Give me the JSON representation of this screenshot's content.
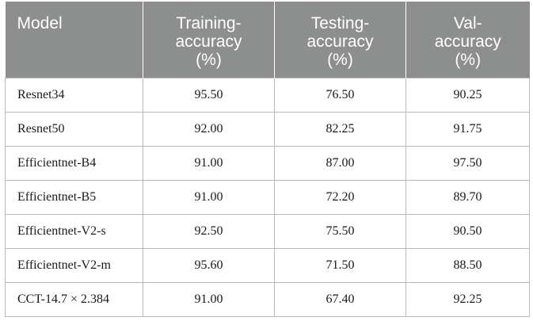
{
  "table": {
    "headers": [
      "Model",
      "Training-\naccuracy\n(%)",
      "Testing-\naccuracy\n(%)",
      "Val-\naccuracy\n(%)"
    ],
    "rows": [
      [
        "Resnet34",
        "95.50",
        "76.50",
        "90.25"
      ],
      [
        "Resnet50",
        "92.00",
        "82.25",
        "91.75"
      ],
      [
        "Efficientnet-B4",
        "91.00",
        "87.00",
        "97.50"
      ],
      [
        "Efficientnet-B5",
        "91.00",
        "72.20",
        "89.70"
      ],
      [
        "Efficientnet-V2-s",
        "92.50",
        "75.50",
        "90.50"
      ],
      [
        "Efficientnet-V2-m",
        "95.60",
        "71.50",
        "88.50"
      ],
      [
        "CCT-14.7 × 2.384",
        "91.00",
        "67.40",
        "92.25"
      ]
    ]
  },
  "colors": {
    "header_bg": "#8d8e8e",
    "header_text": "#ffffff",
    "border": "#b9b9b9"
  }
}
